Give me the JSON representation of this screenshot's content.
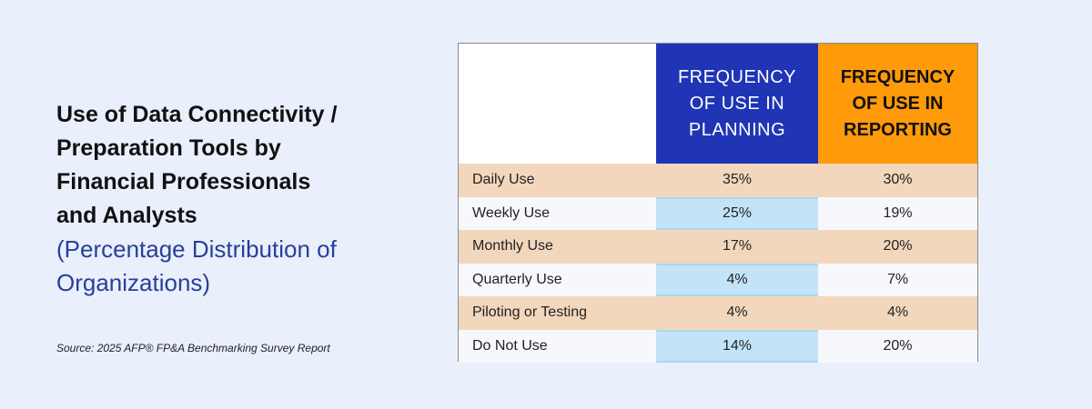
{
  "title_lines": [
    "Use of Data Connectivity /",
    "Preparation Tools by",
    "Financial Professionals",
    "and Analysts"
  ],
  "subtitle_lines": [
    "(Percentage Distribution of",
    "Organizations)"
  ],
  "source": "Source: 2025 AFP® FP&A Benchmarking Survey Report",
  "colors": {
    "planning_header": "#1f35b5",
    "reporting_header": "#ff9a0a",
    "odd_row": "#f2d7bc",
    "even_planning_cell": "#c3e4f8"
  },
  "chart_data": {
    "type": "table",
    "columns": [
      {
        "name": "FREQUENCY OF USE IN PLANNING",
        "lines": [
          "FREQUENCY",
          "OF USE IN",
          "PLANNING"
        ]
      },
      {
        "name": "FREQUENCY OF USE IN REPORTING",
        "lines": [
          "FREQUENCY",
          "OF USE IN",
          "REPORTING"
        ]
      }
    ],
    "rows": [
      {
        "label": "Daily Use",
        "planning": "35%",
        "reporting": "30%"
      },
      {
        "label": "Weekly Use",
        "planning": "25%",
        "reporting": "19%"
      },
      {
        "label": "Monthly Use",
        "planning": "17%",
        "reporting": "20%"
      },
      {
        "label": "Quarterly Use",
        "planning": "4%",
        "reporting": "7%"
      },
      {
        "label": "Piloting or Testing",
        "planning": "4%",
        "reporting": "4%"
      },
      {
        "label": "Do Not Use",
        "planning": "14%",
        "reporting": "20%"
      }
    ]
  }
}
